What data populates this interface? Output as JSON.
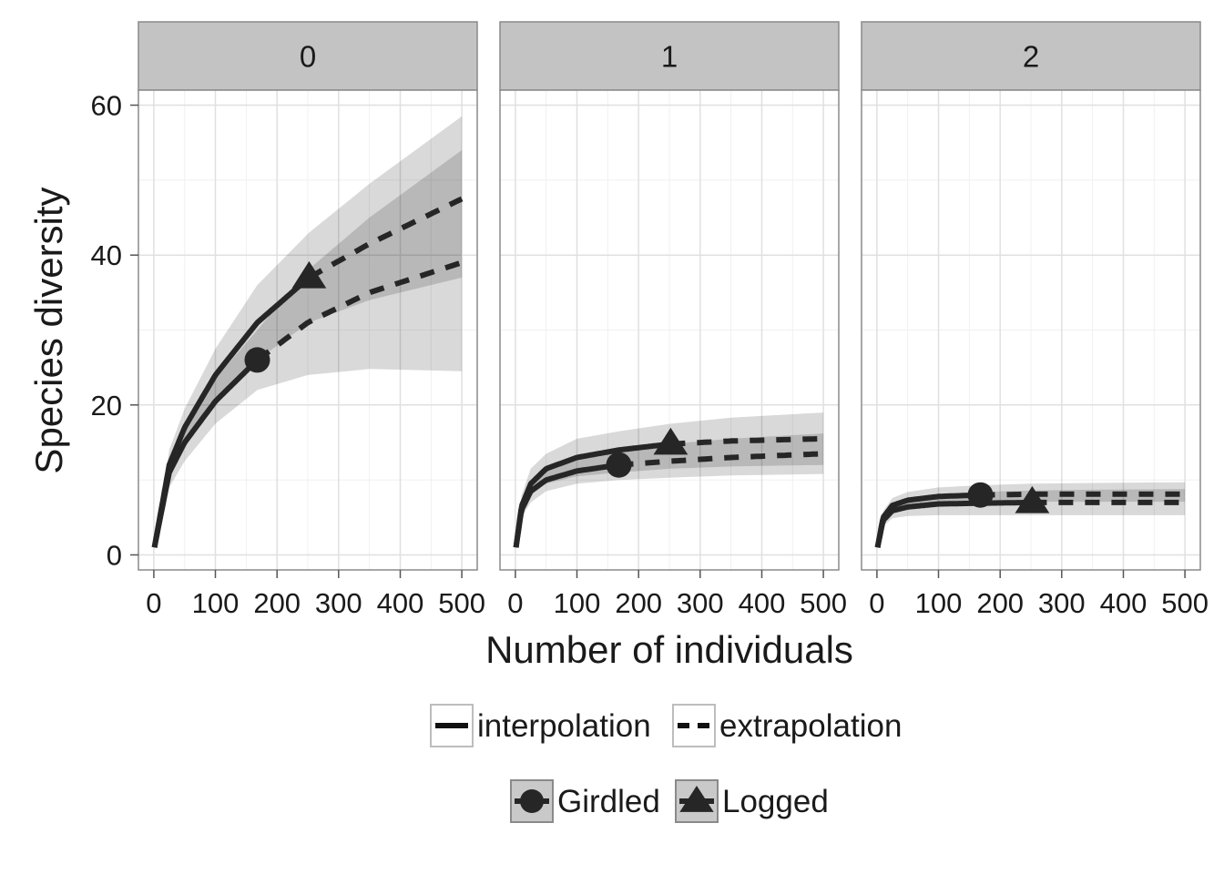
{
  "chart_data": {
    "type": "line",
    "facets": [
      "0",
      "1",
      "2"
    ],
    "xlabel": "Number of individuals",
    "ylabel": "Species diversity",
    "xlim": [
      -25,
      525
    ],
    "ylim": [
      -2,
      62
    ],
    "x_ticks": [
      0,
      100,
      200,
      300,
      400,
      500
    ],
    "y_ticks": [
      0,
      20,
      40,
      60
    ],
    "grid": true,
    "legend_position": "bottom",
    "legends": [
      {
        "kind": "linetype",
        "entries": [
          {
            "label": "interpolation",
            "style": "solid"
          },
          {
            "label": "extrapolation",
            "style": "dashed"
          }
        ]
      },
      {
        "kind": "shape",
        "entries": [
          {
            "label": "Girdled",
            "marker": "circle"
          },
          {
            "label": "Logged",
            "marker": "triangle"
          }
        ]
      }
    ],
    "series": [
      {
        "name": "Girdled",
        "marker": "circle",
        "facet": "0",
        "observed": {
          "x": 168,
          "y": 26
        },
        "x": [
          1,
          25,
          50,
          100,
          168,
          250,
          350,
          500
        ],
        "y": [
          1,
          11,
          15,
          20.5,
          26,
          31,
          35,
          39
        ],
        "lower": [
          1,
          9,
          12.5,
          17.5,
          22,
          24,
          24.8,
          24.5
        ],
        "upper": [
          1,
          13,
          17.5,
          23.5,
          30,
          38,
          45,
          54
        ]
      },
      {
        "name": "Logged",
        "marker": "triangle",
        "facet": "0",
        "observed": {
          "x": 252,
          "y": 37
        },
        "x": [
          1,
          25,
          50,
          100,
          168,
          252,
          350,
          500
        ],
        "y": [
          1,
          12,
          17,
          24,
          31,
          37,
          41.5,
          47.5
        ],
        "lower": [
          1,
          10,
          14.5,
          20.5,
          26,
          31,
          34,
          37
        ],
        "upper": [
          1,
          14,
          19.5,
          27.5,
          36,
          43,
          49.5,
          58.5
        ]
      },
      {
        "name": "Girdled",
        "marker": "circle",
        "facet": "1",
        "observed": {
          "x": 168,
          "y": 12
        },
        "x": [
          1,
          10,
          25,
          50,
          100,
          168,
          250,
          350,
          500
        ],
        "y": [
          1,
          6,
          8.5,
          10,
          11.2,
          12,
          12.5,
          13,
          13.5
        ],
        "lower": [
          1,
          5,
          7,
          8.5,
          9.5,
          10,
          10.3,
          10.6,
          10.8
        ],
        "upper": [
          1,
          7,
          10,
          11.5,
          13,
          14,
          14.8,
          15.5,
          16.2
        ]
      },
      {
        "name": "Logged",
        "marker": "triangle",
        "facet": "1",
        "observed": {
          "x": 252,
          "y": 14.8
        },
        "x": [
          1,
          10,
          25,
          50,
          100,
          168,
          252,
          350,
          500
        ],
        "y": [
          1,
          6.5,
          9.5,
          11.5,
          13,
          14,
          14.8,
          15.2,
          15.5
        ],
        "lower": [
          1,
          5.5,
          8,
          9.5,
          10.5,
          11,
          11.5,
          11.8,
          12
        ],
        "upper": [
          1,
          8,
          11.5,
          13.5,
          15.5,
          16.5,
          17.5,
          18.3,
          19
        ]
      },
      {
        "name": "Girdled",
        "marker": "circle",
        "facet": "2",
        "observed": {
          "x": 168,
          "y": 8
        },
        "x": [
          1,
          10,
          25,
          50,
          100,
          168,
          250,
          350,
          500
        ],
        "y": [
          1,
          5,
          6.6,
          7.3,
          7.8,
          8,
          8.1,
          8.1,
          8.1
        ],
        "lower": [
          1,
          4.3,
          5.8,
          6.4,
          6.8,
          7,
          7.1,
          7.1,
          7.1
        ],
        "upper": [
          1,
          5.8,
          7.6,
          8.4,
          9,
          9.3,
          9.5,
          9.6,
          9.7
        ]
      },
      {
        "name": "Logged",
        "marker": "triangle",
        "facet": "2",
        "observed": {
          "x": 252,
          "y": 7
        },
        "x": [
          1,
          10,
          25,
          50,
          100,
          168,
          252,
          350,
          500
        ],
        "y": [
          1,
          4.6,
          5.9,
          6.4,
          6.8,
          6.9,
          7,
          7,
          7
        ],
        "lower": [
          1,
          3.8,
          4.9,
          5.2,
          5.3,
          5.3,
          5.3,
          5.3,
          5.3
        ],
        "upper": [
          1,
          5.5,
          7,
          7.6,
          8.1,
          8.4,
          8.6,
          8.7,
          8.8
        ]
      }
    ]
  }
}
